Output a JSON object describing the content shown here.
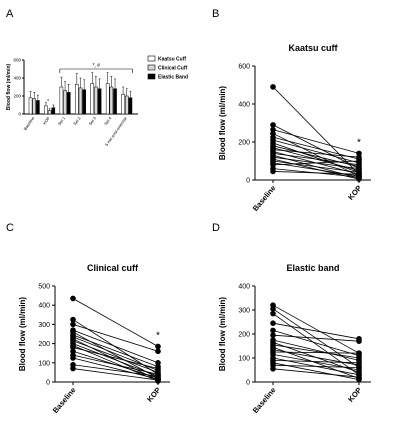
{
  "chart_data": [
    {
      "panel": "A",
      "type": "bar",
      "ylabel": "Blood flow (ml/min)",
      "ylim": [
        0,
        600
      ],
      "yticks": [
        "0",
        "200",
        "400",
        "600"
      ],
      "categories": [
        "Baseline",
        "KOP",
        "Set 1",
        "Set 2",
        "Set 3",
        "Set 4",
        "5 min post-exercise"
      ],
      "series": [
        {
          "name": "Kaatsu Cuff",
          "fill": "#ffffff",
          "values": [
            180,
            90,
            300,
            330,
            340,
            340,
            220
          ],
          "errors": [
            70,
            35,
            110,
            120,
            120,
            120,
            80
          ]
        },
        {
          "name": "Clinical Cuff",
          "fill": "#d8d8d8",
          "values": [
            170,
            40,
            260,
            290,
            300,
            300,
            200
          ],
          "errors": [
            70,
            20,
            100,
            110,
            120,
            120,
            80
          ]
        },
        {
          "name": "Elastic Band",
          "fill": "#000000",
          "values": [
            150,
            70,
            240,
            270,
            280,
            280,
            180
          ],
          "errors": [
            60,
            30,
            90,
            110,
            110,
            110,
            70
          ]
        }
      ],
      "annotations": [
        "*",
        "*, #"
      ]
    },
    {
      "panel": "B",
      "type": "line",
      "title": "Kaatsu cuff",
      "ylabel": "Blood flow (ml/min)",
      "categories": [
        "Baseline",
        "KOP"
      ],
      "ylim": [
        0,
        600
      ],
      "yticks": [
        "0",
        "200",
        "400",
        "600"
      ],
      "annotation": "*",
      "series": [
        {
          "values": [
            490,
            30
          ]
        },
        {
          "values": [
            290,
            60
          ]
        },
        {
          "values": [
            265,
            140
          ]
        },
        {
          "values": [
            245,
            20
          ]
        },
        {
          "values": [
            225,
            110
          ]
        },
        {
          "values": [
            210,
            90
          ]
        },
        {
          "values": [
            195,
            40
          ]
        },
        {
          "values": [
            180,
            70
          ]
        },
        {
          "values": [
            170,
            50
          ]
        },
        {
          "values": [
            160,
            120
          ]
        },
        {
          "values": [
            150,
            30
          ]
        },
        {
          "values": [
            140,
            80
          ]
        },
        {
          "values": [
            130,
            10
          ]
        },
        {
          "values": [
            120,
            60
          ]
        },
        {
          "values": [
            110,
            5
          ]
        },
        {
          "values": [
            100,
            40
          ]
        },
        {
          "values": [
            90,
            20
          ]
        },
        {
          "values": [
            80,
            100
          ]
        },
        {
          "values": [
            60,
            15
          ]
        },
        {
          "values": [
            45,
            30
          ]
        }
      ]
    },
    {
      "panel": "C",
      "type": "line",
      "title": "Clinical cuff",
      "ylabel": "Blood flow (ml/min)",
      "categories": [
        "Baseline",
        "KOP"
      ],
      "ylim": [
        0,
        500
      ],
      "yticks": [
        "0",
        "100",
        "200",
        "300",
        "400",
        "500"
      ],
      "annotation": "*",
      "series": [
        {
          "values": [
            435,
            185
          ]
        },
        {
          "values": [
            325,
            40
          ]
        },
        {
          "values": [
            300,
            160
          ]
        },
        {
          "values": [
            270,
            100
          ]
        },
        {
          "values": [
            260,
            20
          ]
        },
        {
          "values": [
            245,
            80
          ]
        },
        {
          "values": [
            235,
            60
          ]
        },
        {
          "values": [
            225,
            10
          ]
        },
        {
          "values": [
            215,
            50
          ]
        },
        {
          "values": [
            200,
            30
          ]
        },
        {
          "values": [
            190,
            5
          ]
        },
        {
          "values": [
            180,
            70
          ]
        },
        {
          "values": [
            160,
            20
          ]
        },
        {
          "values": [
            140,
            40
          ]
        },
        {
          "values": [
            125,
            15
          ]
        },
        {
          "values": [
            90,
            30
          ]
        },
        {
          "values": [
            70,
            10
          ]
        }
      ]
    },
    {
      "panel": "D",
      "type": "line",
      "title": "Elastic band",
      "ylabel": "Blood flow (ml/min)",
      "categories": [
        "Baseline",
        "KOP"
      ],
      "ylim": [
        0,
        400
      ],
      "yticks": [
        "0",
        "100",
        "200",
        "300",
        "400"
      ],
      "series": [
        {
          "values": [
            320,
            120
          ]
        },
        {
          "values": [
            305,
            60
          ]
        },
        {
          "values": [
            285,
            30
          ]
        },
        {
          "values": [
            245,
            180
          ]
        },
        {
          "values": [
            215,
            110
          ]
        },
        {
          "values": [
            195,
            170
          ]
        },
        {
          "values": [
            175,
            90
          ]
        },
        {
          "values": [
            165,
            40
          ]
        },
        {
          "values": [
            155,
            100
          ]
        },
        {
          "values": [
            145,
            15
          ]
        },
        {
          "values": [
            135,
            70
          ]
        },
        {
          "values": [
            125,
            120
          ]
        },
        {
          "values": [
            115,
            50
          ]
        },
        {
          "values": [
            100,
            30
          ]
        },
        {
          "values": [
            90,
            80
          ]
        },
        {
          "values": [
            80,
            10
          ]
        },
        {
          "values": [
            70,
            60
          ]
        },
        {
          "values": [
            55,
            20
          ]
        }
      ]
    }
  ],
  "panel_labels": [
    "A",
    "B",
    "C",
    "D"
  ]
}
